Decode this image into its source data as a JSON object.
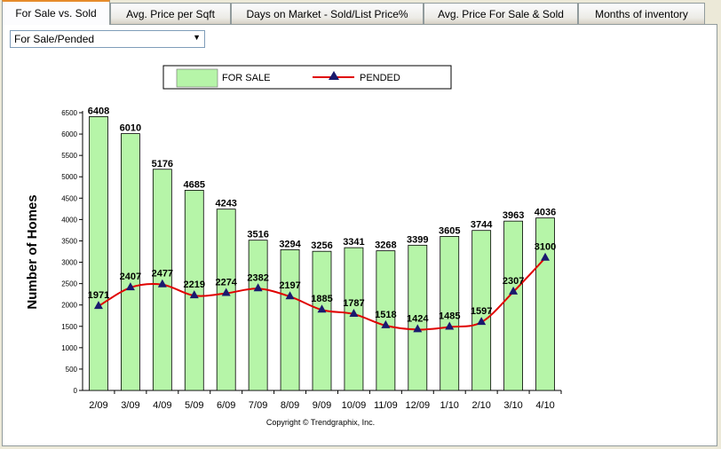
{
  "tabs": [
    {
      "label": "For Sale vs. Sold",
      "active": true
    },
    {
      "label": "Avg. Price per Sqft",
      "active": false
    },
    {
      "label": "Days on Market - Sold/List Price%",
      "active": false
    },
    {
      "label": "Avg. Price For Sale & Sold",
      "active": false
    },
    {
      "label": "Months of inventory",
      "active": false
    }
  ],
  "dropdown": {
    "selected": "For Sale/Pended",
    "icon": "chevron-down-icon"
  },
  "legend": {
    "bar_label": "FOR SALE",
    "line_label": "PENDED"
  },
  "copyright": "Copyright © Trendgraphix, Inc.",
  "colors": {
    "bar_fill": "#b6f5a8",
    "line": "#e00000",
    "marker": "#1a1a6e"
  },
  "chart_data": {
    "type": "bar",
    "ylabel": "Number of Homes",
    "ylim": [
      0,
      6500
    ],
    "ytick_step": 500,
    "categories": [
      "2/09",
      "3/09",
      "4/09",
      "5/09",
      "6/09",
      "7/09",
      "8/09",
      "9/09",
      "10/09",
      "11/09",
      "12/09",
      "1/10",
      "2/10",
      "3/10",
      "4/10"
    ],
    "series": [
      {
        "name": "FOR SALE",
        "kind": "bar",
        "values": [
          6408,
          6010,
          5176,
          4685,
          4243,
          3516,
          3294,
          3256,
          3341,
          3268,
          3399,
          3605,
          3744,
          3963,
          4036
        ]
      },
      {
        "name": "PENDED",
        "kind": "line",
        "values": [
          1971,
          2407,
          2477,
          2219,
          2274,
          2382,
          2197,
          1885,
          1787,
          1518,
          1424,
          1485,
          1597,
          2307,
          3100
        ]
      }
    ],
    "grid": false,
    "legend_position": "top"
  }
}
